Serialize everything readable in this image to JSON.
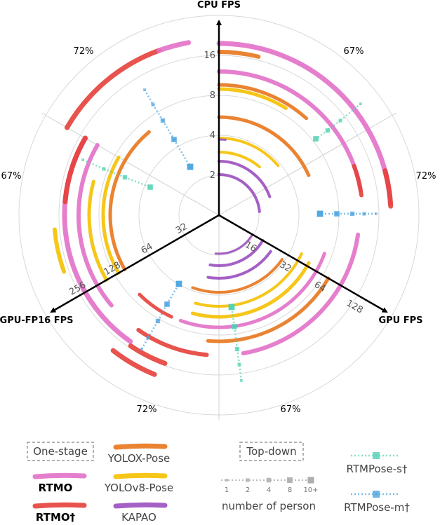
{
  "chart_data": {
    "type": "radar-arc",
    "axes": [
      {
        "name": "CPU FPS",
        "ticks": [
          "2",
          "4",
          "8",
          "16"
        ]
      },
      {
        "name": "GPU FPS",
        "ticks": [
          "16",
          "32",
          "64",
          "128"
        ]
      },
      {
        "name": "GPU-FP16 FPS",
        "ticks": [
          "32",
          "64",
          "128",
          "256"
        ]
      }
    ],
    "ring_labels": [
      "67%",
      "72%",
      "67%",
      "72%",
      "67%",
      "72%"
    ],
    "series": [
      {
        "name": "YOLOX-Pose",
        "group": "One-stage",
        "color": "#e8761c"
      },
      {
        "name": "YOLOv8-Pose",
        "group": "One-stage",
        "color": "#f5c000"
      },
      {
        "name": "KAPAO",
        "group": "One-stage",
        "color": "#9b4fbf"
      },
      {
        "name": "RTMO",
        "group": "One-stage",
        "color": "#e271c8"
      },
      {
        "name": "RTMO†",
        "group": "One-stage",
        "color": "#e5403a"
      },
      {
        "name": "RTMPose-s†",
        "group": "Top-down",
        "color": "#4fd1b1"
      },
      {
        "name": "RTMPose-m†",
        "group": "Top-down",
        "color": "#4aa3e0"
      }
    ],
    "top_down_person_counts": [
      "1",
      "2",
      "4",
      "8",
      "10+"
    ]
  },
  "legend": {
    "one_stage": "One-stage",
    "top_down": "Top-down",
    "items": {
      "yolox": "YOLOX-Pose",
      "yolov8": "YOLOv8-Pose",
      "kapao": "KAPAO",
      "rtmo": "RTMO",
      "rtmo_dagger": "RTMO†",
      "rtmpose_s": "RTMPose-s†",
      "rtmpose_m": "RTMPose-m†"
    },
    "counts_label": "number of person"
  }
}
